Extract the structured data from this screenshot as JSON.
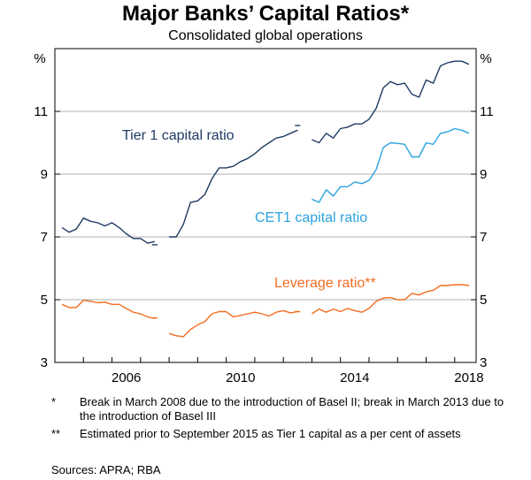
{
  "chart_data": {
    "type": "line",
    "title": "Major Banks’ Capital Ratios*",
    "subtitle": "Consolidated global operations",
    "ylabel_left": "%",
    "ylabel_right": "%",
    "ylim": [
      3,
      13
    ],
    "yticks": [
      3,
      5,
      7,
      9,
      11
    ],
    "ytick_labels": [
      "3",
      "5",
      "7",
      "9",
      "11"
    ],
    "xlim": [
      2004.0,
      2018.75
    ],
    "xticks": [
      2006,
      2010,
      2014,
      2018
    ],
    "xtick_labels": [
      "2006",
      "2010",
      "2014",
      "2018"
    ],
    "grid": "horizontal",
    "series": [
      {
        "name": "Tier 1 capital ratio",
        "color": "#1f3a63",
        "segments": [
          {
            "x": [
              2004.25,
              2004.5,
              2004.75,
              2005.0,
              2005.25,
              2005.5,
              2005.75,
              2006.0,
              2006.25,
              2006.5,
              2006.75,
              2007.0,
              2007.25,
              2007.5
            ],
            "y": [
              7.3,
              7.15,
              7.25,
              7.6,
              7.5,
              7.45,
              7.35,
              7.45,
              7.3,
              7.1,
              6.95,
              6.95,
              6.8,
              6.85
            ]
          },
          {
            "x": [
              2007.5
            ],
            "y": [
              6.75
            ]
          },
          {
            "x": [
              2008.0,
              2008.25,
              2008.5,
              2008.75,
              2009.0,
              2009.25,
              2009.5,
              2009.75,
              2010.0,
              2010.25,
              2010.5,
              2010.75,
              2011.0,
              2011.25,
              2011.5,
              2011.75,
              2012.0,
              2012.25,
              2012.5
            ],
            "y": [
              7.0,
              7.0,
              7.4,
              8.1,
              8.15,
              8.35,
              8.85,
              9.2,
              9.2,
              9.25,
              9.4,
              9.5,
              9.65,
              9.85,
              10.0,
              10.15,
              10.2,
              10.3,
              10.4
            ]
          },
          {
            "x": [
              2012.5
            ],
            "y": [
              10.55
            ]
          },
          {
            "x": [
              2013.0,
              2013.25,
              2013.5,
              2013.75,
              2014.0,
              2014.25,
              2014.5,
              2014.75,
              2015.0,
              2015.25,
              2015.5,
              2015.75,
              2016.0,
              2016.25,
              2016.5,
              2016.75,
              2017.0,
              2017.25,
              2017.5,
              2017.75,
              2018.0,
              2018.25,
              2018.5
            ],
            "y": [
              10.1,
              10.0,
              10.3,
              10.15,
              10.45,
              10.5,
              10.6,
              10.6,
              10.75,
              11.1,
              11.75,
              11.95,
              11.85,
              11.9,
              11.55,
              11.45,
              12.0,
              11.9,
              12.45,
              12.55,
              12.6,
              12.6,
              12.5
            ]
          }
        ]
      },
      {
        "name": "CET1 capital ratio",
        "color": "#2aa3dc",
        "segments": [
          {
            "x": [
              2013.0,
              2013.25,
              2013.5,
              2013.75,
              2014.0,
              2014.25,
              2014.5,
              2014.75,
              2015.0,
              2015.25,
              2015.5,
              2015.75,
              2016.0,
              2016.25,
              2016.5,
              2016.75,
              2017.0,
              2017.25,
              2017.5,
              2017.75,
              2018.0,
              2018.25,
              2018.5
            ],
            "y": [
              8.2,
              8.1,
              8.5,
              8.3,
              8.6,
              8.6,
              8.75,
              8.7,
              8.8,
              9.15,
              9.85,
              10.0,
              9.98,
              9.95,
              9.55,
              9.55,
              10.0,
              9.95,
              10.3,
              10.35,
              10.45,
              10.4,
              10.3
            ]
          }
        ]
      },
      {
        "name": "Leverage ratio**",
        "color": "#f26d21",
        "segments": [
          {
            "x": [
              2004.25,
              2004.5,
              2004.75,
              2005.0,
              2005.25,
              2005.5,
              2005.75,
              2006.0,
              2006.25,
              2006.5,
              2006.75,
              2007.0,
              2007.25,
              2007.5
            ],
            "y": [
              4.85,
              4.75,
              4.75,
              4.98,
              4.95,
              4.9,
              4.92,
              4.85,
              4.85,
              4.72,
              4.6,
              4.55,
              4.45,
              4.4
            ]
          },
          {
            "x": [
              2007.5
            ],
            "y": [
              4.42
            ]
          },
          {
            "x": [
              2008.0,
              2008.25,
              2008.5,
              2008.75,
              2009.0,
              2009.25,
              2009.5,
              2009.75,
              2010.0,
              2010.25,
              2010.5,
              2010.75,
              2011.0,
              2011.25,
              2011.5,
              2011.75,
              2012.0,
              2012.25,
              2012.5
            ],
            "y": [
              3.92,
              3.85,
              3.82,
              4.05,
              4.2,
              4.3,
              4.55,
              4.62,
              4.62,
              4.45,
              4.5,
              4.55,
              4.6,
              4.55,
              4.48,
              4.6,
              4.65,
              4.58,
              4.62
            ]
          },
          {
            "x": [
              2012.5
            ],
            "y": [
              4.62
            ]
          },
          {
            "x": [
              2013.0,
              2013.25,
              2013.5,
              2013.75,
              2014.0,
              2014.25,
              2014.5,
              2014.75,
              2015.0,
              2015.25,
              2015.5,
              2015.75,
              2016.0,
              2016.25,
              2016.5,
              2016.75,
              2017.0,
              2017.25,
              2017.5,
              2017.75,
              2018.0,
              2018.25,
              2018.5
            ],
            "y": [
              4.55,
              4.7,
              4.6,
              4.7,
              4.62,
              4.72,
              4.65,
              4.6,
              4.72,
              4.95,
              5.05,
              5.07,
              5.0,
              5.0,
              5.2,
              5.15,
              5.25,
              5.3,
              5.45,
              5.45,
              5.48,
              5.48,
              5.45
            ]
          }
        ]
      }
    ],
    "annotations": [
      {
        "text": "Tier 1 capital ratio",
        "series": 0
      },
      {
        "text": "CET1 capital ratio",
        "series": 1
      },
      {
        "text": "Leverage ratio**",
        "series": 2
      }
    ]
  },
  "notes": [
    {
      "mark": "*",
      "text": "Break in March 2008 due to the introduction of Basel II; break in March 2013 due to the introduction of Basel III"
    },
    {
      "mark": "**",
      "text": "Estimated prior to September 2015 as Tier 1 capital as a per cent of assets"
    }
  ],
  "sources": "Sources:   APRA; RBA"
}
